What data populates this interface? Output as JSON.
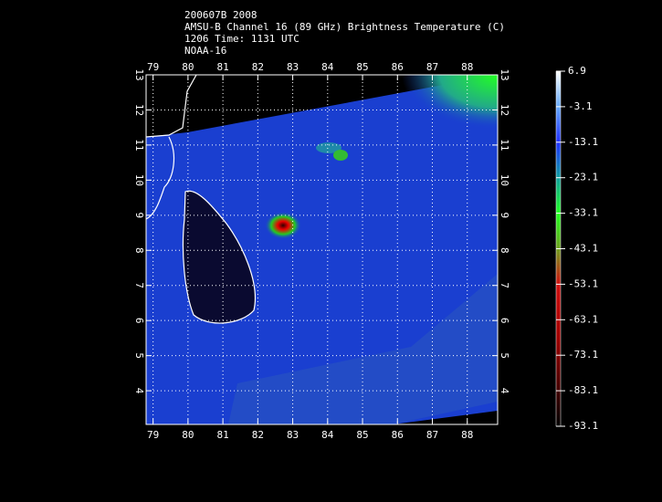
{
  "chart_data": {
    "type": "map",
    "title_lines": [
      "200607B 2008",
      "AMSU-B Channel 16 (89 GHz) Brightness Temperature (C)",
      "1206 Time: 1131 UTC",
      "NOAA-16"
    ],
    "xlim": [
      78.8,
      88.87
    ],
    "xticks": [
      79,
      80,
      81,
      82,
      83,
      84,
      85,
      86,
      87,
      88
    ],
    "ylim": [
      3.04,
      13
    ],
    "yticks": [
      4,
      5,
      6,
      7,
      8,
      9,
      10,
      11,
      12,
      13
    ],
    "grid": true,
    "colorbar_lim": [
      -93.1,
      6.9
    ],
    "colorbar_ticks": [
      6.9,
      -3.1,
      -13.1,
      -23.1,
      -33.1,
      -43.1,
      -53.1,
      -63.1,
      -73.1,
      -83.1,
      -93.1
    ]
  }
}
